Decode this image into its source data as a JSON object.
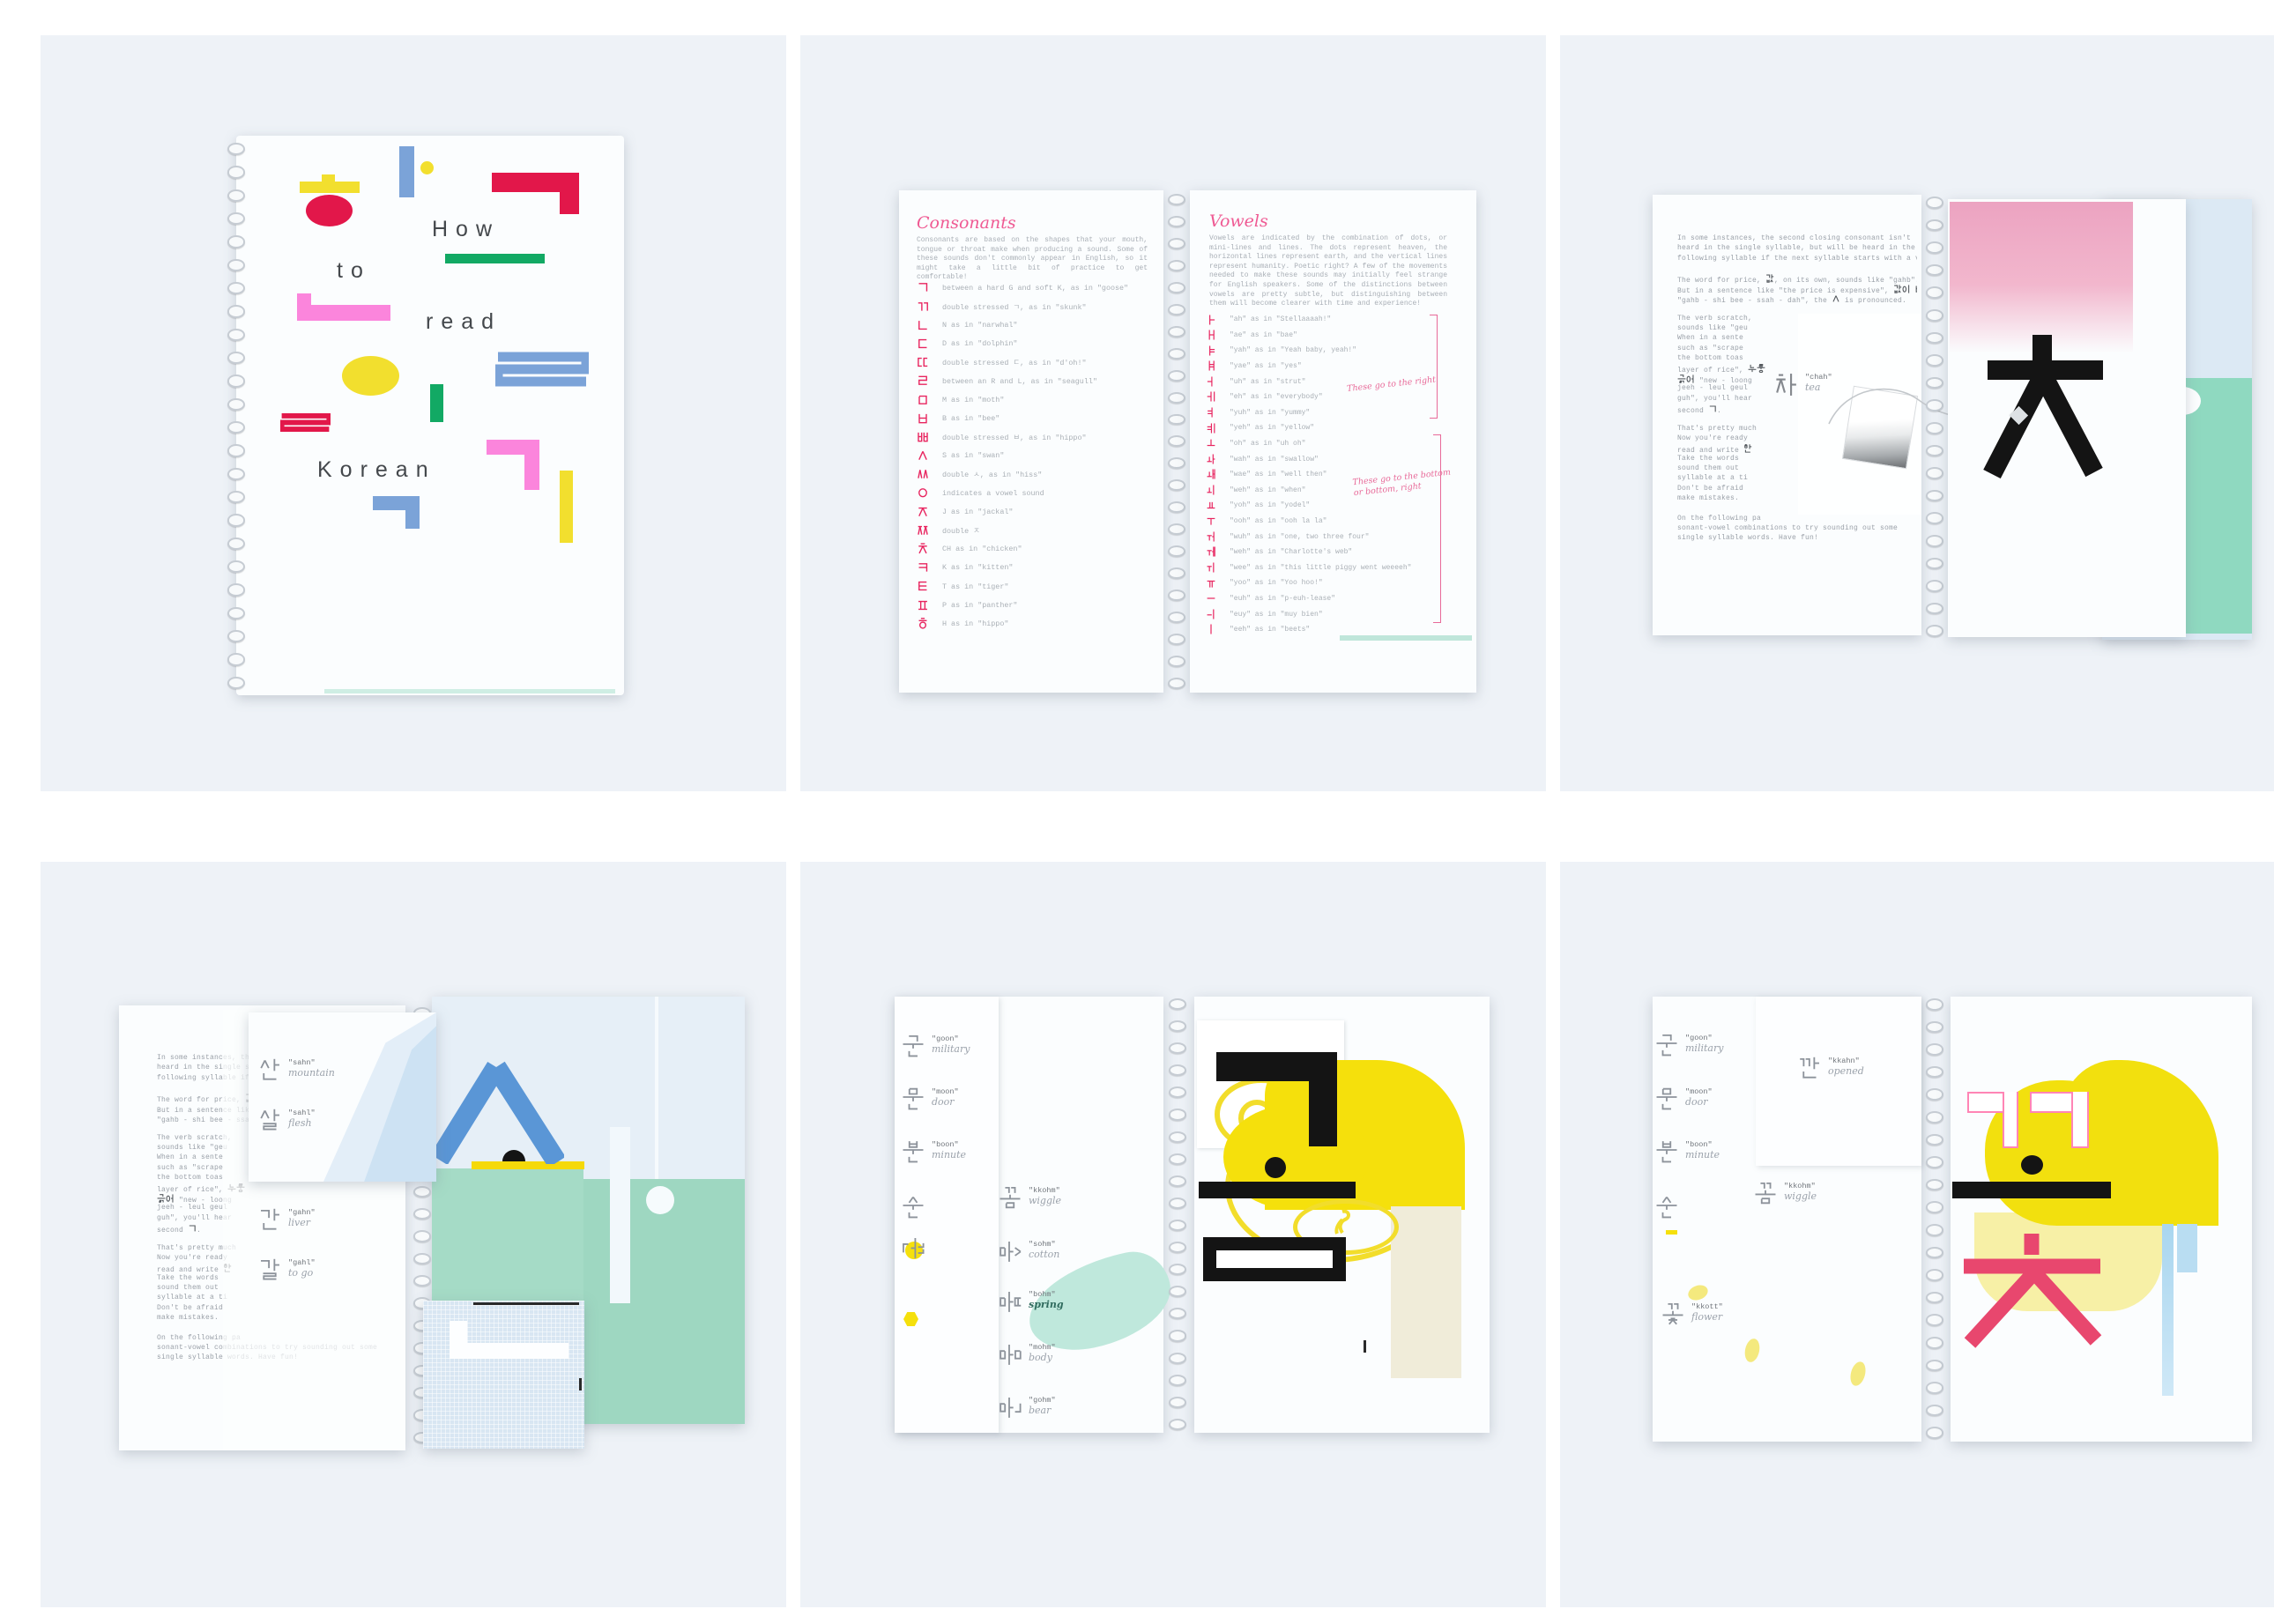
{
  "colors": {
    "accent_pink": "#e8245f",
    "cover_yellow": "#f2df2e",
    "cover_red": "#e2174a",
    "cover_blue": "#7ba3d8",
    "cover_green": "#12a964",
    "cover_pink": "#fb85dc",
    "mint": "#a9dcc8",
    "art_yellow": "#f5e00c",
    "art_black": "#141414",
    "art_blue": "#5a96d6",
    "art_rose": "#e8476e",
    "grad_pink": "#efa5c2"
  },
  "cover": {
    "title_words": [
      "How",
      "to",
      "read",
      "Korean"
    ]
  },
  "consonants": {
    "heading": "Consonants",
    "intro": "Consonants are based on the shapes that your mouth, tongue or throat make when producing a sound. Some of these sounds don't commonly appear in English, so it might take a little bit of practice to get comfortable!",
    "rows": [
      {
        "jamo": "ㄱ",
        "text": "between a hard G and soft K, as in \"goose\""
      },
      {
        "jamo": "ㄲ",
        "text": "double stressed ㄱ, as in \"skunk\""
      },
      {
        "jamo": "ㄴ",
        "text": "N as in \"narwhal\""
      },
      {
        "jamo": "ㄷ",
        "text": "D as in \"dolphin\""
      },
      {
        "jamo": "ㄸ",
        "text": "double stressed ㄷ, as in \"d'oh!\""
      },
      {
        "jamo": "ㄹ",
        "text": "between an R and L, as in \"seagull\""
      },
      {
        "jamo": "ㅁ",
        "text": "M as in \"moth\""
      },
      {
        "jamo": "ㅂ",
        "text": "B as in \"bee\""
      },
      {
        "jamo": "ㅃ",
        "text": "double stressed ㅂ, as in \"hippo\""
      },
      {
        "jamo": "ㅅ",
        "text": "S as in \"swan\""
      },
      {
        "jamo": "ㅆ",
        "text": "double ㅅ, as in \"hiss\""
      },
      {
        "jamo": "ㅇ",
        "text": "indicates a vowel sound"
      },
      {
        "jamo": "ㅈ",
        "text": "J as in \"jackal\""
      },
      {
        "jamo": "ㅉ",
        "text": "double ㅈ"
      },
      {
        "jamo": "ㅊ",
        "text": "CH as in \"chicken\""
      },
      {
        "jamo": "ㅋ",
        "text": "K as in \"kitten\""
      },
      {
        "jamo": "ㅌ",
        "text": "T as in \"tiger\""
      },
      {
        "jamo": "ㅍ",
        "text": "P as in \"panther\""
      },
      {
        "jamo": "ㅎ",
        "text": "H as in \"hippo\""
      }
    ]
  },
  "vowels": {
    "heading": "Vowels",
    "intro": "Vowels are indicated by the combination of dots, or mini-lines and lines. The dots represent heaven, the horizontal lines represent earth, and the vertical lines represent humanity. Poetic right? A few of the movements needed to make these sounds may initially feel strange for English speakers. Some of the distinctions between vowels are pretty subtle, but distinguishing between them will become clearer with time and experience!",
    "note_right": "These go to the right",
    "note_bottom": "These go to the bottom or bottom, right",
    "rows": [
      {
        "jamo": "ㅏ",
        "text": "\"ah\" as in \"Stellaaaah!\""
      },
      {
        "jamo": "ㅐ",
        "text": "\"ae\" as in \"bae\""
      },
      {
        "jamo": "ㅑ",
        "text": "\"yah\" as in \"Yeah baby, yeah!\""
      },
      {
        "jamo": "ㅒ",
        "text": "\"yae\" as in \"yes\""
      },
      {
        "jamo": "ㅓ",
        "text": "\"uh\" as in \"strut\""
      },
      {
        "jamo": "ㅔ",
        "text": "\"eh\" as in \"everybody\""
      },
      {
        "jamo": "ㅕ",
        "text": "\"yuh\" as in \"yummy\""
      },
      {
        "jamo": "ㅖ",
        "text": "\"yeh\" as in \"yellow\""
      },
      {
        "jamo": "ㅗ",
        "text": "\"oh\" as in \"uh oh\""
      },
      {
        "jamo": "ㅘ",
        "text": "\"wah\" as in \"swallow\""
      },
      {
        "jamo": "ㅙ",
        "text": "\"wae\" as in \"well then\""
      },
      {
        "jamo": "ㅚ",
        "text": "\"weh\" as in \"when\""
      },
      {
        "jamo": "ㅛ",
        "text": "\"yoh\" as in \"yodel\""
      },
      {
        "jamo": "ㅜ",
        "text": "\"ooh\" as in \"ooh la la\""
      },
      {
        "jamo": "ㅝ",
        "text": "\"wuh\" as in \"one, two three four\""
      },
      {
        "jamo": "ㅞ",
        "text": "\"weh\" as in \"Charlotte's web\""
      },
      {
        "jamo": "ㅟ",
        "text": "\"wee\" as in \"this little piggy went weeeeh\""
      },
      {
        "jamo": "ㅠ",
        "text": "\"yoo\" as in \"Yoo hoo!\""
      },
      {
        "jamo": "ㅡ",
        "text": "\"euh\" as in \"p-euh-lease\""
      },
      {
        "jamo": "ㅢ",
        "text": "\"euy\" as in \"muy bien\""
      },
      {
        "jamo": "ㅣ",
        "text": "\"eeh\" as in \"beets\""
      }
    ]
  },
  "lesson": {
    "lines": [
      "In some instances, the second closing consonant isn't",
      "heard in the single syllable, but will be heard in the",
      "following syllable if the next syllable starts with a vowel.",
      "",
      "The word for price, 값, on its own, sounds like \"gahb\".",
      "But in a sentence like \"the price is expensive\", 값이 비싸다",
      "\"gahb - shi bee - ssah - dah\", the ㅅ is pronounced.",
      "",
      "The verb scratch,",
      "sounds like \"geu",
      "When in a sente",
      "such as \"scrape",
      "the bottom toas",
      "layer of rice\", 누룽",
      "긁어 \"new - loong",
      "jeeh - leul geul",
      "guh\", you'll hear",
      "second ㄱ.",
      "",
      "That's pretty much",
      "Now you're ready",
      "read and write 한",
      "Take the words",
      "sound them out",
      "syllable at a ti",
      "Don't be afraid",
      "make mistakes.",
      "",
      "On the following pa",
      "sonant-vowel combinations to try sounding out some",
      "single syllable words. Have fun!"
    ],
    "tea_syllable": "차",
    "tea_phonetic": "\"chah\"",
    "tea_gloss": "tea"
  },
  "spread_sahn": {
    "words": [
      {
        "syllable": "산",
        "phonetic": "\"sahn\"",
        "gloss": "mountain"
      },
      {
        "syllable": "살",
        "phonetic": "\"sahl\"",
        "gloss": "flesh"
      },
      {
        "syllable": "간",
        "phonetic": "\"gahn\"",
        "gloss": "liver"
      },
      {
        "syllable": "갈",
        "phonetic": "\"gahl\"",
        "gloss": "to go"
      }
    ]
  },
  "spread_gohm": {
    "left_words": [
      {
        "syllable": "군",
        "phonetic": "\"goon\"",
        "gloss": "military"
      },
      {
        "syllable": "문",
        "phonetic": "\"moon\"",
        "gloss": "door"
      },
      {
        "syllable": "분",
        "phonetic": "\"boon\"",
        "gloss": "minute"
      },
      {
        "syllable": "순",
        "phonetic": "",
        "gloss": ""
      },
      {
        "syllable": "꾼",
        "phonetic": "",
        "gloss": ""
      }
    ],
    "mid_words": [
      {
        "syllable": "꼼",
        "phonetic": "\"kkohm\"",
        "gloss": "wiggle"
      },
      {
        "syllable": "솜",
        "phonetic": "\"sohm\"",
        "gloss": "cotton"
      },
      {
        "syllable": "봄",
        "phonetic": "\"bohm\"",
        "gloss": "spring"
      },
      {
        "syllable": "몸",
        "phonetic": "\"mohm\"",
        "gloss": "body"
      },
      {
        "syllable": "곰",
        "phonetic": "\"gohm\"",
        "gloss": "bear"
      }
    ]
  },
  "spread_kkott": {
    "left_words": [
      {
        "syllable": "군",
        "phonetic": "\"goon\"",
        "gloss": "military"
      },
      {
        "syllable": "문",
        "phonetic": "\"moon\"",
        "gloss": "door"
      },
      {
        "syllable": "분",
        "phonetic": "\"boon\"",
        "gloss": "minute"
      },
      {
        "syllable": "순",
        "phonetic": "",
        "gloss": ""
      }
    ],
    "card_word": {
      "syllable": "깐",
      "phonetic": "\"kkahn\"",
      "gloss": "opened"
    },
    "mid_word": {
      "syllable": "꼼",
      "phonetic": "\"kkohm\"",
      "gloss": "wiggle"
    },
    "flower_word": {
      "syllable": "꽃",
      "phonetic": "\"kkott\"",
      "gloss": "flower"
    }
  }
}
